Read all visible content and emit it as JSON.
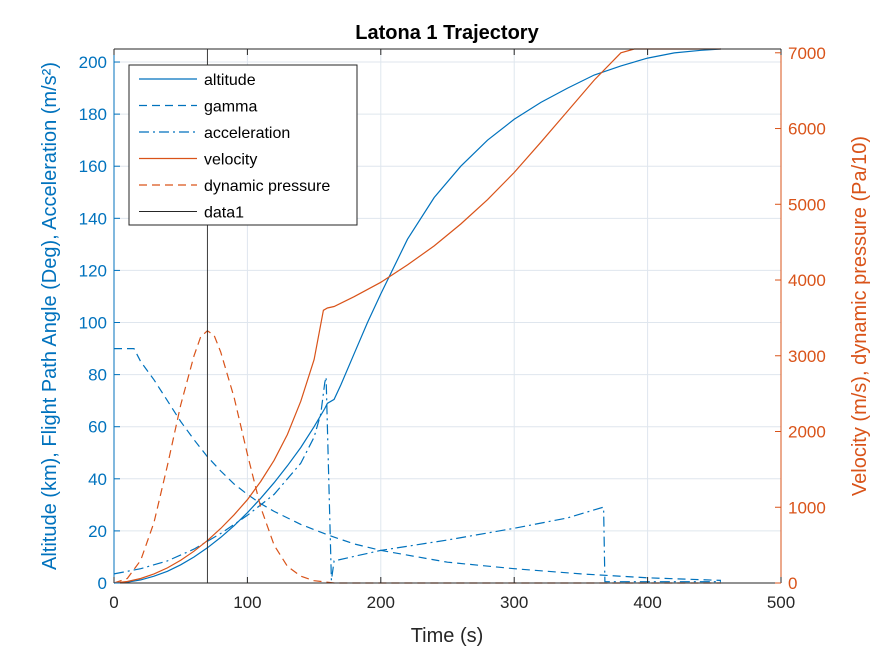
{
  "chart_data": {
    "type": "line",
    "title": "Latona 1 Trajectory",
    "xlabel": "Time (s)",
    "ylabel_left": "Altitude (km), Flight Path Angle (Deg), Acceleration (m/s²)",
    "ylabel_right": "Velocity (m/s), dynamic pressure (Pa/10)",
    "xlim": [
      0,
      500
    ],
    "ylim_left": [
      0,
      205
    ],
    "ylim_right": [
      0,
      7050
    ],
    "xticks": [
      "0",
      "100",
      "200",
      "300",
      "400",
      "500"
    ],
    "yticks_left": [
      "0",
      "20",
      "40",
      "60",
      "80",
      "100",
      "120",
      "140",
      "160",
      "180",
      "200"
    ],
    "yticks_right": [
      "0",
      "1000",
      "2000",
      "3000",
      "4000",
      "5000",
      "6000",
      "7000"
    ],
    "grid": true,
    "legend_position": "top-left",
    "colors": {
      "left": "#0072BD",
      "right": "#D95319",
      "data1": "#262626",
      "axis": "#262626",
      "grid": "#dfe6ee"
    },
    "series": [
      {
        "name": "altitude",
        "axis": "left",
        "style": "solid",
        "color": "#0072BD",
        "x": [
          0,
          10,
          20,
          30,
          40,
          50,
          60,
          70,
          80,
          90,
          100,
          110,
          120,
          130,
          140,
          150,
          158,
          160,
          165,
          170,
          180,
          190,
          200,
          220,
          240,
          260,
          280,
          300,
          320,
          340,
          360,
          380,
          400,
          420,
          440,
          455
        ],
        "y": [
          0,
          0.3,
          1.2,
          2.6,
          4.5,
          7,
          10,
          13.5,
          17.5,
          22,
          27,
          32.5,
          38.5,
          45,
          52,
          60,
          67,
          69,
          70.5,
          76,
          88,
          100,
          111,
          132,
          148,
          160,
          170,
          178,
          184.5,
          190,
          195,
          198.5,
          201.5,
          203.5,
          204.5,
          205
        ]
      },
      {
        "name": "gamma",
        "axis": "left",
        "style": "dashed",
        "color": "#0072BD",
        "x": [
          0,
          12,
          15,
          20,
          30,
          40,
          50,
          60,
          70,
          80,
          90,
          100,
          110,
          120,
          140,
          160,
          180,
          200,
          250,
          300,
          350,
          400,
          455
        ],
        "y": [
          90,
          90,
          90,
          85,
          78,
          70,
          62,
          55,
          48.5,
          43,
          38,
          34,
          30.5,
          27.5,
          22.5,
          18.5,
          15,
          12.5,
          8,
          5.5,
          3.5,
          2,
          1
        ]
      },
      {
        "name": "acceleration",
        "axis": "left",
        "style": "dashdot",
        "color": "#0072BD",
        "x": [
          0,
          20,
          40,
          60,
          80,
          100,
          120,
          140,
          150,
          155,
          158,
          159,
          163,
          165,
          200,
          250,
          300,
          340,
          366,
          367,
          368,
          455
        ],
        "y": [
          3.5,
          5.5,
          8.5,
          13,
          19,
          26,
          34,
          46,
          56,
          65,
          77,
          79,
          1,
          8.5,
          12.5,
          16.5,
          21,
          25,
          29,
          29,
          0.5,
          0.5
        ]
      },
      {
        "name": "velocity",
        "axis": "right",
        "style": "solid",
        "color": "#D95319",
        "x": [
          0,
          10,
          20,
          30,
          40,
          50,
          60,
          70,
          80,
          90,
          100,
          110,
          120,
          130,
          140,
          150,
          157,
          160,
          165,
          180,
          200,
          220,
          240,
          260,
          280,
          300,
          320,
          340,
          360,
          380,
          390,
          400,
          455
        ],
        "y": [
          0,
          20,
          60,
          120,
          200,
          300,
          420,
          560,
          720,
          900,
          1100,
          1340,
          1620,
          1960,
          2400,
          2950,
          3600,
          3630,
          3650,
          3780,
          3970,
          4200,
          4450,
          4740,
          5060,
          5420,
          5820,
          6230,
          6640,
          7000,
          7050,
          7050,
          7050
        ]
      },
      {
        "name": "dynamic pressure",
        "axis": "right",
        "style": "dashed",
        "color": "#D95319",
        "x": [
          0,
          10,
          20,
          30,
          40,
          50,
          60,
          65,
          70,
          75,
          80,
          90,
          100,
          110,
          120,
          130,
          140,
          150,
          160,
          165,
          200,
          300,
          455
        ],
        "y": [
          0,
          60,
          300,
          800,
          1550,
          2350,
          3000,
          3250,
          3330,
          3270,
          3050,
          2450,
          1700,
          1000,
          500,
          220,
          90,
          30,
          10,
          0,
          0,
          0,
          0
        ]
      },
      {
        "name": "data1",
        "axis": "left",
        "style": "solid",
        "color": "#262626",
        "x": [
          70,
          70
        ],
        "y": [
          0,
          205
        ]
      }
    ]
  }
}
